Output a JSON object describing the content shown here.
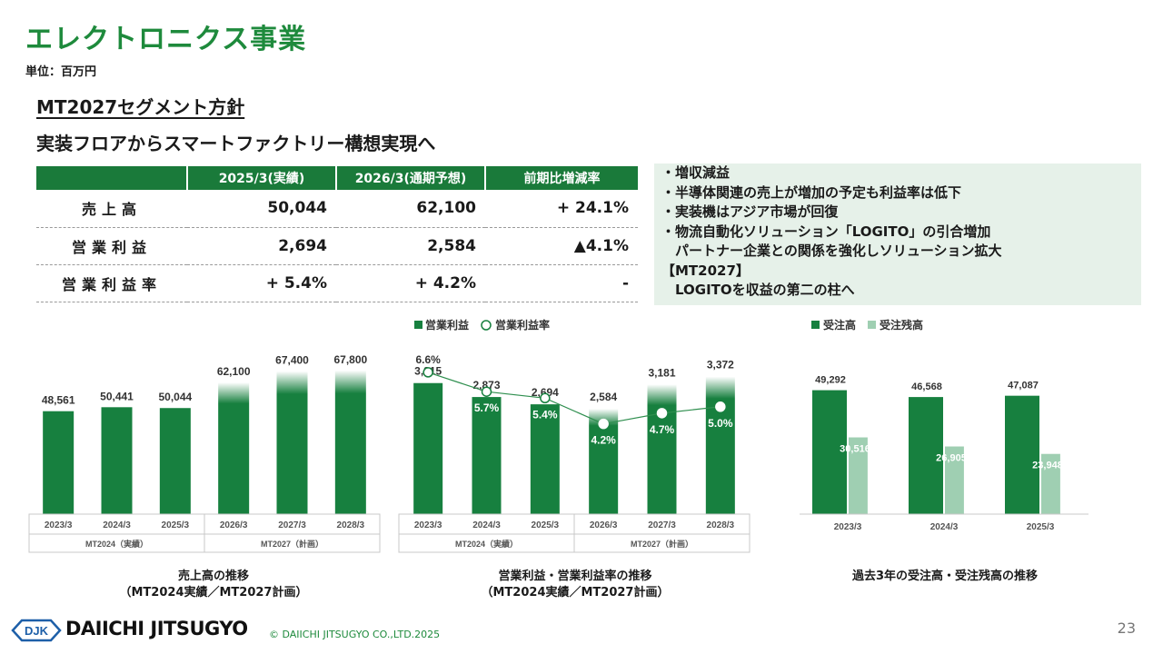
{
  "header": {
    "title": "エレクトロニクス事業",
    "unit": "単位：百万円",
    "policy_title": "MT2027セグメント方針",
    "policy_sub": "実装フロアからスマートファクトリー構想実現へ"
  },
  "table": {
    "headers": [
      "",
      "2025/3(実績)",
      "2026/3(通期予想)",
      "前期比増減率"
    ],
    "rows": [
      {
        "label": "売上高",
        "a": "50,044",
        "b": "62,100",
        "c": "+ 24.1%"
      },
      {
        "label": "営業利益",
        "a": "2,694",
        "b": "2,584",
        "c": "▲4.1%"
      },
      {
        "label": "営業利益率",
        "a": "+ 5.4%",
        "b": "+ 4.2%",
        "c": "-"
      }
    ]
  },
  "bullets": [
    "・増収減益",
    "・半導体関連の売上が増加の予定も利益率は低下",
    "・実装機はアジア市場が回復",
    "・物流自動化ソリューション「LOGITO」の引合増加",
    "　パートナー企業との関係を強化しソリューション拡大",
    "【MT2027】",
    "　LOGITOを収益の第二の柱へ"
  ],
  "colors": {
    "brand_green": "#1e8a3c",
    "bar_dark": "#17803f",
    "bar_light": "#9fcfb2",
    "table_header": "#1a7a3a",
    "bullet_bg": "#e6f1e9"
  },
  "chart_data": [
    {
      "type": "bar",
      "categories": [
        "2023/3",
        "2024/3",
        "2025/3",
        "2026/3",
        "2027/3",
        "2028/3"
      ],
      "values": [
        48561,
        50441,
        50044,
        62100,
        67400,
        67800
      ],
      "value_labels": [
        "48,561",
        "50,441",
        "50,044",
        "62,100",
        "67,400",
        "67,800"
      ],
      "plan_from_index": 3,
      "groups": [
        {
          "label": "MT2024（実績）",
          "start": 0,
          "end": 2
        },
        {
          "label": "MT2027（計画）",
          "start": 3,
          "end": 5
        }
      ],
      "ylim": [
        0,
        75000
      ],
      "caption": [
        "売上高の推移",
        "（MT2024実績／MT2027計画）"
      ]
    },
    {
      "type": "bar+line",
      "categories": [
        "2023/3",
        "2024/3",
        "2025/3",
        "2026/3",
        "2027/3",
        "2028/3"
      ],
      "series": [
        {
          "name": "営業利益",
          "values": [
            3215,
            2873,
            2694,
            2584,
            3181,
            3372
          ],
          "labels": [
            "3,215",
            "2,873",
            "2,694",
            "2,584",
            "3,181",
            "3,372"
          ]
        },
        {
          "name": "営業利益率",
          "values": [
            6.6,
            5.7,
            5.4,
            4.2,
            4.7,
            5.0
          ],
          "labels": [
            "6.6%",
            "5.7%",
            "5.4%",
            "4.2%",
            "4.7%",
            "5.0%"
          ]
        }
      ],
      "plan_from_index": 3,
      "groups": [
        {
          "label": "MT2024（実績）",
          "start": 0,
          "end": 2
        },
        {
          "label": "MT2027（計画）",
          "start": 3,
          "end": 5
        }
      ],
      "ylim": [
        0,
        3900
      ],
      "ylim_right": [
        0,
        7.4
      ],
      "legend": "top-left",
      "caption": [
        "営業利益・営業利益率の推移",
        "（MT2024実績／MT2027計画）"
      ]
    },
    {
      "type": "bar",
      "categories": [
        "2023/3",
        "2024/3",
        "2025/3"
      ],
      "series": [
        {
          "name": "受注高",
          "values": [
            49292,
            46568,
            47087
          ],
          "labels": [
            "49,292",
            "46,568",
            "47,087"
          ]
        },
        {
          "name": "受注残高",
          "values": [
            30516,
            26905,
            23948
          ],
          "labels": [
            "30,516",
            "26,905",
            "23,948"
          ]
        }
      ],
      "ylim": [
        0,
        56000
      ],
      "legend": "top-left",
      "caption": [
        "過去3年の受注高・受注残高の推移"
      ]
    }
  ],
  "footer": {
    "logo": "DJK",
    "brand": "DAIICHI JITSUGYO",
    "copyright": "© DAIICHI JITSUGYO CO.,LTD.2025",
    "page": "23"
  }
}
